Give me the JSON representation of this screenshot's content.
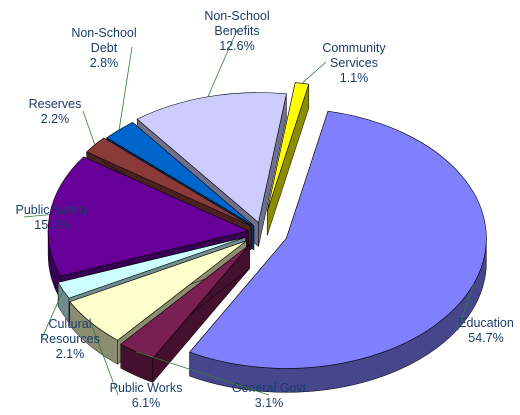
{
  "chart_data": {
    "type": "pie",
    "title": "",
    "three_d": true,
    "exploded": true,
    "slices": [
      {
        "label": "Education",
        "value": 54.7,
        "value_label": "54.7%",
        "color": "#8080ff"
      },
      {
        "label": "General Govt",
        "value": 3.1,
        "value_label": "3.1%",
        "color": "#7a1f52"
      },
      {
        "label": "Public Works",
        "value": 6.1,
        "value_label": "6.1%",
        "color": "#ffffcc"
      },
      {
        "label": "Cultural Resources",
        "value": 2.1,
        "value_label": "2.1%",
        "color": "#ccffff"
      },
      {
        "label": "Public Safety",
        "value": 15.3,
        "value_label": "15.3%",
        "color": "#660099"
      },
      {
        "label": "Reserves",
        "value": 2.2,
        "value_label": "2.2%",
        "color": "#8b3a3a"
      },
      {
        "label": "Non-School Debt",
        "value": 2.8,
        "value_label": "2.8%",
        "color": "#0066cc"
      },
      {
        "label": "Non-School Benefits",
        "value": 12.6,
        "value_label": "12.6%",
        "color": "#ccccff"
      },
      {
        "label": "Community Services",
        "value": 1.1,
        "value_label": "1.1%",
        "color": "#ffff00"
      }
    ]
  }
}
